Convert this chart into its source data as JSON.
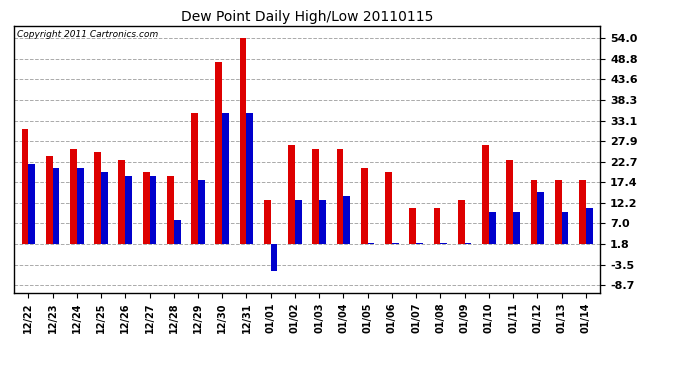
{
  "title": "Dew Point Daily High/Low 20110115",
  "copyright": "Copyright 2011 Cartronics.com",
  "categories": [
    "12/22",
    "12/23",
    "12/24",
    "12/25",
    "12/26",
    "12/27",
    "12/28",
    "12/29",
    "12/30",
    "12/31",
    "01/01",
    "01/02",
    "01/03",
    "01/04",
    "01/05",
    "01/06",
    "01/07",
    "01/08",
    "01/09",
    "01/10",
    "01/11",
    "01/12",
    "01/13",
    "01/14"
  ],
  "highs": [
    31,
    24,
    26,
    25,
    23,
    20,
    19,
    35,
    48,
    54,
    13,
    27,
    26,
    26,
    21,
    20,
    11,
    11,
    13,
    27,
    23,
    18,
    18,
    18
  ],
  "lows": [
    22,
    21,
    21,
    20,
    19,
    19,
    8,
    18,
    35,
    35,
    -5,
    13,
    13,
    14,
    2,
    2,
    2,
    2,
    2,
    10,
    10,
    15,
    10,
    11
  ],
  "high_color": "#dd0000",
  "low_color": "#0000cc",
  "background_color": "#ffffff",
  "grid_color": "#aaaaaa",
  "yticks": [
    54.0,
    48.8,
    43.6,
    38.3,
    33.1,
    27.9,
    22.7,
    17.4,
    12.2,
    7.0,
    1.8,
    -3.5,
    -8.7
  ],
  "ylim": [
    -10.5,
    57.0
  ],
  "bar_width": 0.28,
  "baseline": 1.8
}
